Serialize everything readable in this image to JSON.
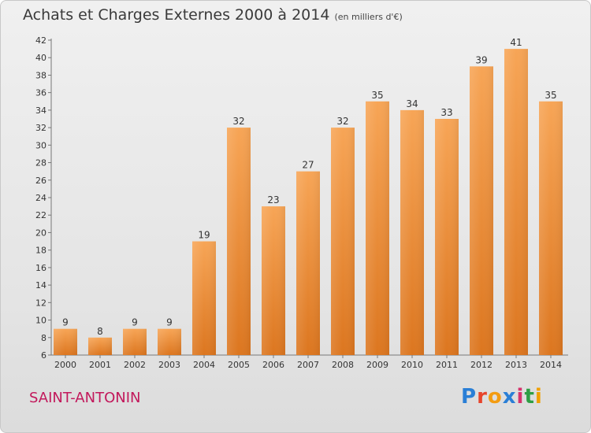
{
  "chart_data": {
    "type": "bar",
    "title": "Achats et Charges Externes 2000 à 2014",
    "subtitle": "(en milliers d'€)",
    "categories": [
      "2000",
      "2001",
      "2002",
      "2003",
      "2004",
      "2005",
      "2006",
      "2007",
      "2008",
      "2009",
      "2010",
      "2011",
      "2012",
      "2013",
      "2014"
    ],
    "values": [
      9,
      8,
      9,
      9,
      19,
      32,
      23,
      27,
      32,
      35,
      34,
      33,
      39,
      41,
      35
    ],
    "ylim": [
      6,
      42
    ],
    "yticks": [
      6,
      8,
      10,
      12,
      14,
      16,
      18,
      20,
      22,
      24,
      26,
      28,
      30,
      32,
      34,
      36,
      38,
      40,
      42
    ],
    "grid": false,
    "xlabel": "",
    "ylabel": ""
  },
  "commune": "SAINT-ANTONIN",
  "logo": {
    "text": "Proxiti"
  },
  "colors": {
    "bar_light": "#f7a556",
    "bar_dark": "#dc761f",
    "commune": "#c2185b"
  }
}
